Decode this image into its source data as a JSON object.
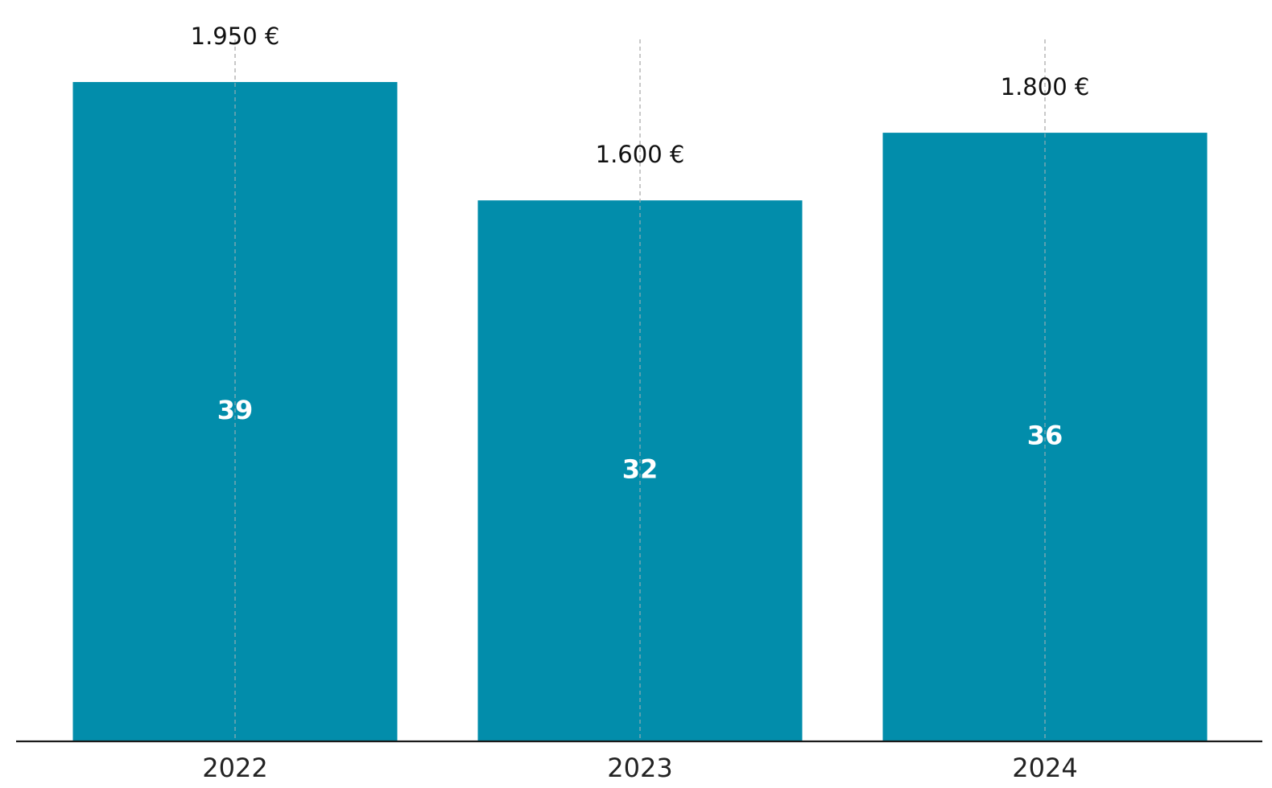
{
  "chart_data": {
    "type": "bar",
    "categories": [
      "2022",
      "2023",
      "2024"
    ],
    "values": [
      1950,
      1600,
      1800
    ],
    "value_labels": [
      "1.950 €",
      "1.600 €",
      "1.800 €"
    ],
    "inner_values": [
      39,
      32,
      36
    ],
    "inner_labels": [
      "39",
      "32",
      "36"
    ],
    "title": "",
    "xlabel": "",
    "ylabel": "",
    "ylim": [
      0,
      2000
    ],
    "grid": "vertical dashed lines at category centers",
    "legend": "none",
    "colors": {
      "bar": "#028DAB",
      "inner_label": "#ffffff",
      "value_label": "#111111",
      "grid": "#b5b5b5",
      "axis": "#1a1a1a"
    }
  }
}
